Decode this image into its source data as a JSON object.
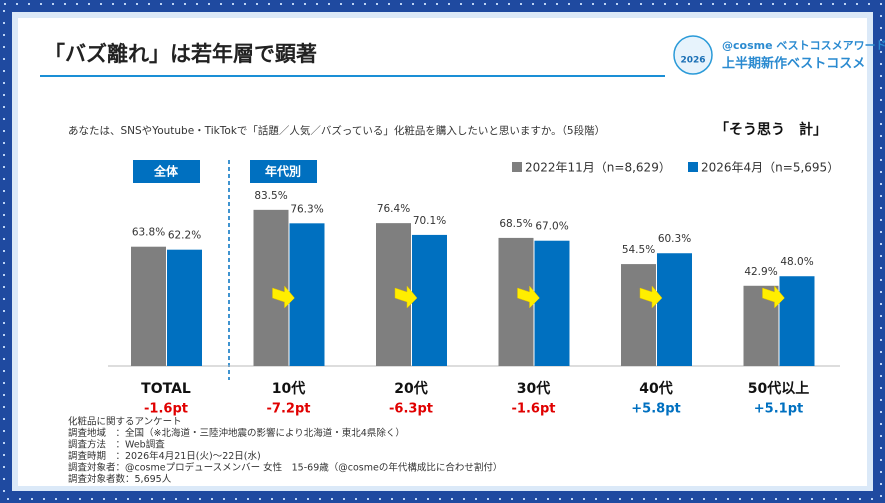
{
  "header": {
    "title": "「バズ離れ」は若年層で顕著",
    "logo_top": "@cosme ベストコスメアワード",
    "logo_bottom": "上半期新作ベストコスメ",
    "badge": "2026"
  },
  "chart_data": {
    "type": "bar",
    "question": "あなたは、SNSやYoutube・TikTokで「話題／人気／バズっている」化粧品を購入したいと思いますか。（5段階）",
    "measure": "「そう思う　計」",
    "group_labels": [
      "全体",
      "年代別"
    ],
    "categories": [
      "TOTAL",
      "10代",
      "20代",
      "30代",
      "40代",
      "50代以上"
    ],
    "series": [
      {
        "name": "2022年11月（n=8,629）",
        "color": "#7f7f7f",
        "values": [
          63.8,
          83.5,
          76.4,
          68.5,
          54.5,
          42.9
        ],
        "value_labels": [
          "63.8%",
          "83.5%",
          "76.4%",
          "68.5%",
          "54.5%",
          "42.9%"
        ]
      },
      {
        "name": "2026年4月（n=5,695）",
        "color": "#0070c0",
        "values": [
          62.2,
          76.3,
          70.1,
          67.0,
          60.3,
          48.0
        ],
        "value_labels": [
          "62.2%",
          "76.3%",
          "70.1%",
          "67.0%",
          "60.3%",
          "48.0%"
        ]
      }
    ],
    "differences": [
      -1.6,
      -7.2,
      -6.3,
      -1.6,
      5.8,
      5.1
    ],
    "difference_labels": [
      "-1.6pt",
      "-7.2pt",
      "-6.3pt",
      "-1.6pt",
      "+5.8pt",
      "+5.1pt"
    ]
  },
  "notes": [
    "化粧品に関するアンケート",
    "調査地域　：全国（※北海道・三陸沖地震の影響により北海道・東北4県除く）",
    "調査方法　：Web調査",
    "調査時期　：2026年4月21日(火)～22日(水)",
    "調査対象者：@cosmeプロデュースメンバー 女性　15-69歳（@cosmeの年代構成比に合わせ割付）",
    "調査対象者数：5,695人"
  ]
}
